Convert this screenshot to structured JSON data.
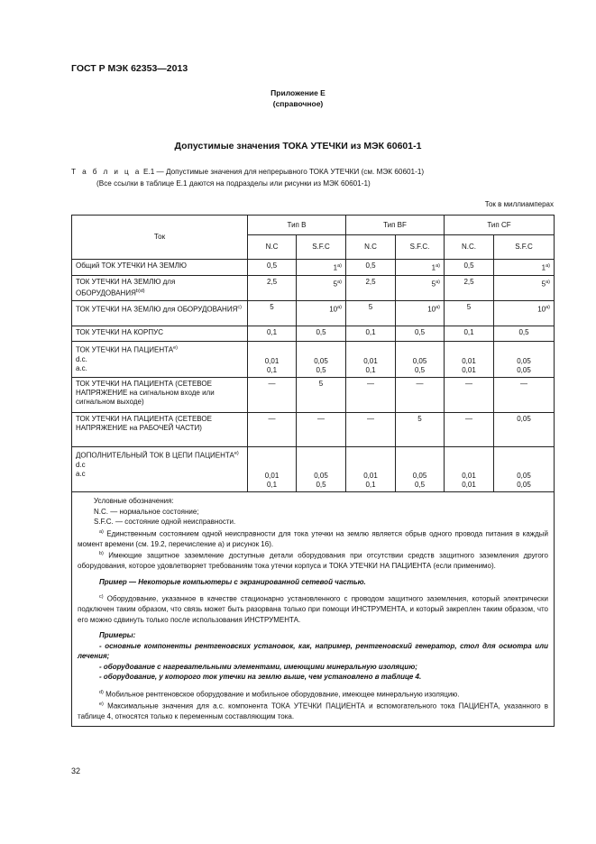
{
  "header": "ГОСТ Р МЭК 62353—2013",
  "appendix": {
    "title": "Приложение Е",
    "note": "(справочное)"
  },
  "section_title": "Допустимые значения ТОКА УТЕЧКИ из МЭК 60601-1",
  "caption": {
    "label": "Т а б л и ц а",
    "text": "Е.1 — Допустимые значения для непрерывного ТОКА УТЕЧКИ (см. МЭК 60601-1)",
    "line2": "(Все ссылки в таблице Е.1 даются на подразделы или рисунки из МЭК 60601-1)"
  },
  "unit": "Ток в миллиамперах",
  "table": {
    "col_current": "Ток",
    "groups": [
      "Тип В",
      "Тип BF",
      "Тип CF"
    ],
    "subheaders": [
      "N.C",
      "S.F.C",
      "N.C",
      "S.F.C.",
      "N.C.",
      "S.F.C"
    ],
    "rows": [
      {
        "label": "Общий ТОК УТЕЧКИ НА ЗЕМЛЮ",
        "sup": "",
        "values": [
          "0,5",
          "1",
          "0,5",
          "1",
          "0,5",
          "1"
        ],
        "vsup": [
          "",
          "a)",
          "",
          "a)",
          "",
          "a)"
        ]
      },
      {
        "label": "ТОК УТЕЧКИ НА ЗЕМЛЮ для ОБОРУДОВАНИЯ",
        "sup": "b)d)",
        "values": [
          "2,5",
          "5",
          "2,5",
          "5",
          "2,5",
          "5"
        ],
        "vsup": [
          "",
          "a)",
          "",
          "a)",
          "",
          "a)"
        ]
      },
      {
        "label": "ТОК УТЕЧКИ НА ЗЕМЛЮ для ОБОРУДОВАНИЯ",
        "sup": "c)",
        "values": [
          "5",
          "10",
          "5",
          "10",
          "5",
          "10"
        ],
        "vsup": [
          "",
          "a)",
          "",
          "a)",
          "",
          "a)"
        ]
      },
      {
        "label": "ТОК УТЕЧКИ НА КОРПУС",
        "sup": "",
        "values": [
          "0,1",
          "0,5",
          "0,1",
          "0,5",
          "0,1",
          "0,5"
        ],
        "vsup": [
          "",
          "",
          "",
          "",
          "",
          ""
        ]
      },
      {
        "label": "ТОК УТЕЧКИ НА ПАЦИЕНТА",
        "sup": "e)",
        "sub": [
          "d.c.",
          "a.c."
        ],
        "values": [
          "0,01\n0,1",
          "0,05\n0,5",
          "0,01\n0,1",
          "0,05\n0,5",
          "0,01\n0,01",
          "0,05\n0,05"
        ]
      },
      {
        "label": "ТОК УТЕЧКИ НА ПАЦИЕНТА (СЕТЕВОЕ НАПРЯЖЕНИЕ на сигнальном входе или сигнальном выходе)",
        "sup": "",
        "values": [
          "—",
          "5",
          "—",
          "—",
          "—",
          "—"
        ]
      },
      {
        "label": "ТОК УТЕЧКИ НА ПАЦИЕНТА (СЕТЕВОЕ НАПРЯЖЕНИЕ на РАБОЧЕЙ ЧАСТИ)",
        "sup": "",
        "values": [
          "—",
          "—",
          "—",
          "5",
          "—",
          "0,05"
        ]
      },
      {
        "label": "ДОПОЛНИТЕЛЬНЫЙ ТОК В ЦЕПИ ПАЦИЕНТА",
        "sup": "e)",
        "sub": [
          "d.c",
          "a.c"
        ],
        "values": [
          "0,01\n0,1",
          "0,05\n0,5",
          "0,01\n0,1",
          "0,05\n0,5",
          "0,01\n0,01",
          "0,05\n0,05"
        ]
      }
    ]
  },
  "notes": {
    "legend_title": "Условные обозначения:",
    "nc": "N.C. — нормальное состояние;",
    "sfc": "S.F.C. — состояние одной неисправности.",
    "a_mark": "a)",
    "a": "Единственным состоянием одной неисправности для тока утечки на землю является обрыв одного провода питания в каждый момент времени (см. 19.2, перечисление а) и рисунок 16).",
    "b_mark": "b)",
    "b": "Имеющие защитное заземление доступные детали оборудования при отсутствии средств защитного заземления другого оборудования, которое удовлетворяет требованиям тока утечки корпуса и ТОКА УТЕЧКИ НА ПАЦИЕНТА (если применимо).",
    "b_example": "Пример — Некоторые компьютеры с экранированной сетевой частью.",
    "c_mark": "c)",
    "c": "Оборудование, указанное в качестве стационарно установленного с проводом защитного заземления, который электрически подключен таким образом, что связь может быть разорвана только при помощи ИНСТРУМЕНТА, и который закреплен таким образом, что его можно сдвинуть только после использования ИНСТРУМЕНТА.",
    "c_examples_title": "Примеры:",
    "c_examples": [
      "- основные компоненты рентгеновских установок, как, например, рентгеновский генератор, стол для осмотра или лечения;",
      "- оборудование с нагревательными элементами, имеющими минеральную изоляцию;",
      "- оборудование, у которого ток утечки на землю выше, чем установлено в таблице 4."
    ],
    "d_mark": "d)",
    "d": "Мобильное рентгеновское оборудование и мобильное оборудование, имеющее минеральную изоляцию.",
    "e_mark": "e)",
    "e": "Максимальные значения для а.с. компонента ТОКА УТЕЧКИ ПАЦИЕНТА и вспомогательного тока ПАЦИЕНТА, указанного в таблице 4, относятся только к переменным составляющим тока."
  },
  "page_number": "32"
}
